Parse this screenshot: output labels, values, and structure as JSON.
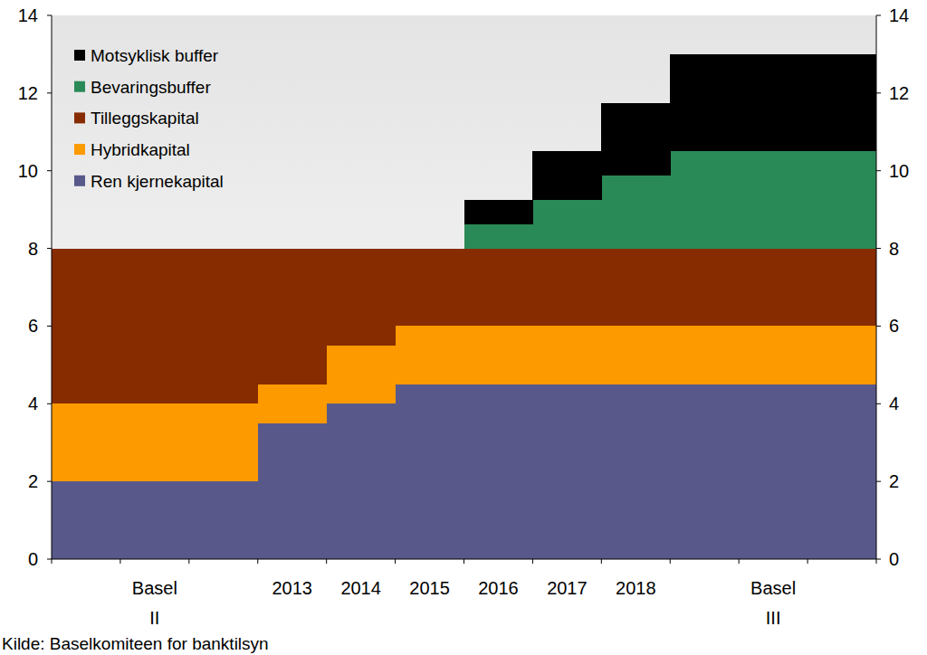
{
  "chart_data": {
    "type": "bar",
    "stacked": true,
    "legend": "top-left",
    "source": "Kilde: Baselkomiteen for banktilsyn",
    "categories": [
      null,
      "Basel II",
      null,
      "2013",
      "2014",
      "2015",
      "2016",
      "2017",
      "2018",
      null,
      "Basel III",
      null
    ],
    "ylim": [
      0,
      14
    ],
    "yticks": [
      0,
      2,
      4,
      6,
      8,
      10,
      12,
      14
    ],
    "series": [
      {
        "name": "Ren kjernekapital",
        "color": "#58598a",
        "values": [
          2,
          2,
          2,
          3.5,
          4,
          4.5,
          4.5,
          4.5,
          4.5,
          4.5,
          4.5,
          4.5
        ]
      },
      {
        "name": "Hybridkapital",
        "color": "#fd9a00",
        "values": [
          2,
          2,
          2,
          1,
          1.5,
          1.5,
          1.5,
          1.5,
          1.5,
          1.5,
          1.5,
          1.5
        ]
      },
      {
        "name": "Tilleggskapital",
        "color": "#872c00",
        "values": [
          4,
          4,
          4,
          3.5,
          2.5,
          2,
          2,
          2,
          2,
          2,
          2,
          2
        ]
      },
      {
        "name": "Bevaringsbuffer",
        "color": "#2a8a57",
        "values": [
          0,
          0,
          0,
          0,
          0,
          0,
          0.625,
          1.25,
          1.875,
          2.5,
          2.5,
          2.5
        ]
      },
      {
        "name": "Motsyklisk buffer",
        "color": "#000000",
        "values": [
          0,
          0,
          0,
          0,
          0,
          0,
          0.625,
          1.25,
          1.875,
          2.5,
          2.5,
          2.5
        ]
      }
    ]
  }
}
